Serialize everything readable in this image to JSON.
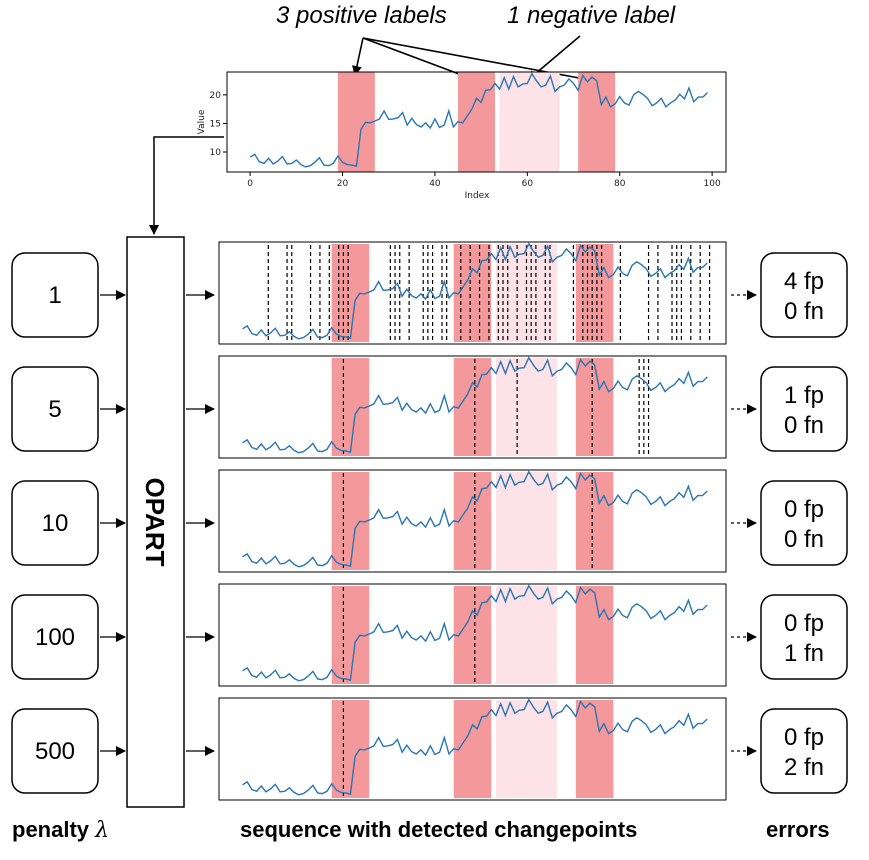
{
  "annotations": {
    "positive": "3 positive labels",
    "negative": "1 negative label"
  },
  "top_plot": {
    "xlabel": "Index",
    "ylabel": "Value",
    "xticks": [
      "0",
      "20",
      "40",
      "60",
      "80",
      "100"
    ],
    "yticks": [
      "10",
      "15",
      "20"
    ]
  },
  "opart_label": "OPART",
  "rows": [
    {
      "penalty": "1",
      "fp": "4 fp",
      "fn": "0 fn",
      "changepoints": [
        5,
        9,
        10,
        14,
        16,
        18,
        20,
        21,
        22,
        31,
        32,
        33,
        35,
        38,
        39,
        40,
        42,
        43,
        46,
        48,
        50,
        52,
        54,
        55,
        56,
        58,
        60,
        61,
        62,
        64,
        65,
        70,
        72,
        73,
        74,
        75,
        76,
        80,
        86,
        88,
        91,
        92,
        93,
        95,
        97,
        99
      ]
    },
    {
      "penalty": "5",
      "fp": "1 fp",
      "fn": "0 fn",
      "changepoints": [
        21,
        49,
        58,
        74,
        84,
        85,
        86
      ]
    },
    {
      "penalty": "10",
      "fp": "0 fp",
      "fn": "0 fn",
      "changepoints": [
        21,
        49,
        74
      ]
    },
    {
      "penalty": "100",
      "fp": "0 fp",
      "fn": "1 fn",
      "changepoints": [
        21,
        49
      ]
    },
    {
      "penalty": "500",
      "fp": "0 fp",
      "fn": "2 fn",
      "changepoints": [
        21
      ]
    }
  ],
  "footer": {
    "penalty": "penalty",
    "lambda": "λ",
    "sequence": "sequence with detected changepoints",
    "errors": "errors"
  },
  "colors": {
    "positive_region": "#f4999b",
    "negative_region": "#fde3e8",
    "line": "#2a75b3"
  },
  "chart_data": {
    "type": "line",
    "xlabel": "Index",
    "ylabel": "Value",
    "xlim": [
      -5,
      103
    ],
    "ylim": [
      6.5,
      24
    ],
    "positive_regions": [
      [
        19,
        27
      ],
      [
        45,
        53
      ],
      [
        71,
        79
      ]
    ],
    "negative_regions": [
      [
        54,
        67
      ]
    ],
    "series": [
      {
        "x": [
          0,
          1,
          2,
          3,
          4,
          5,
          6,
          7,
          8,
          9,
          10,
          11,
          12,
          13,
          14,
          15,
          16,
          17,
          18,
          19,
          20,
          21,
          22,
          23,
          24,
          25,
          26,
          27,
          28,
          29,
          30,
          31,
          32,
          33,
          34,
          35,
          36,
          37,
          38,
          39,
          40,
          41,
          42,
          43,
          44,
          45,
          46,
          47,
          48,
          49,
          50,
          51,
          52,
          53,
          54,
          55,
          56,
          57,
          58,
          59,
          60,
          61,
          62,
          63,
          64,
          65,
          66,
          67,
          68,
          69,
          70,
          71,
          72,
          73,
          74,
          75,
          76,
          77,
          78,
          79,
          80,
          81,
          82,
          83,
          84,
          85,
          86,
          87,
          88,
          89,
          90,
          91,
          92,
          93,
          94,
          95,
          96,
          97,
          98,
          99
        ],
        "y": [
          9.1,
          9.6,
          8.3,
          8.0,
          8.9,
          7.9,
          8.4,
          9.2,
          7.9,
          8.0,
          8.6,
          7.8,
          7.4,
          7.6,
          8.2,
          9.0,
          7.7,
          7.6,
          8.0,
          9.3,
          8.2,
          7.8,
          7.7,
          7.5,
          14.0,
          15.2,
          15.1,
          15.4,
          15.8,
          17.2,
          15.7,
          15.8,
          16.0,
          16.9,
          14.7,
          15.9,
          14.8,
          14.4,
          15.1,
          14.2,
          15.8,
          14.3,
          14.7,
          17.2,
          14.4,
          15.3,
          15.1,
          16.3,
          17.5,
          19.4,
          18.7,
          20.8,
          20.9,
          22.0,
          21.0,
          23.0,
          21.0,
          23.2,
          21.4,
          21.9,
          22.0,
          23.7,
          22.4,
          21.4,
          21.7,
          23.3,
          20.6,
          21.4,
          21.7,
          22.8,
          22.0,
          20.8,
          23.4,
          22.3,
          23.1,
          22.5,
          18.3,
          19.6,
          17.9,
          18.4,
          19.7,
          18.6,
          18.2,
          20.0,
          20.6,
          20.1,
          19.4,
          18.1,
          18.6,
          19.4,
          17.9,
          18.6,
          19.1,
          20.1,
          19.3,
          21.2,
          18.8,
          19.6,
          19.6,
          20.4
        ]
      }
    ]
  }
}
